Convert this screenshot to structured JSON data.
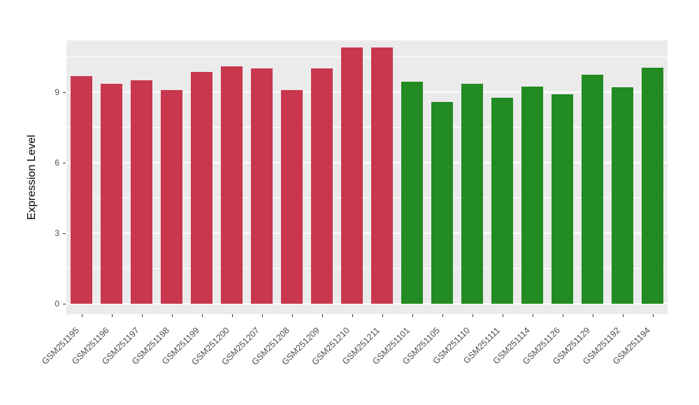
{
  "chart_data": {
    "type": "bar",
    "title": "",
    "xlabel": "",
    "ylabel": "Expression Level",
    "ylim": [
      0,
      11.2
    ],
    "yticks": [
      0,
      3,
      6,
      9
    ],
    "minor_gridlines": [
      1.5,
      4.5,
      7.5,
      10.5
    ],
    "grid": "on",
    "legend_position": "none",
    "categories": [
      "GSM251195",
      "GSM251196",
      "GSM251197",
      "GSM251198",
      "GSM251199",
      "GSM251200",
      "GSM251207",
      "GSM251208",
      "GSM251209",
      "GSM251210",
      "GSM251211",
      "GSM251101",
      "GSM251105",
      "GSM251110",
      "GSM251111",
      "GSM251114",
      "GSM251126",
      "GSM251129",
      "GSM251192",
      "GSM251194"
    ],
    "values": [
      9.7,
      9.35,
      9.5,
      9.1,
      9.85,
      10.1,
      10.0,
      9.1,
      10.0,
      10.9,
      10.9,
      9.45,
      8.6,
      9.35,
      8.75,
      9.25,
      8.9,
      9.75,
      9.2,
      10.05
    ],
    "bar_colors": [
      "#C8374D",
      "#C8374D",
      "#C8374D",
      "#C8374D",
      "#C8374D",
      "#C8374D",
      "#C8374D",
      "#C8374D",
      "#C8374D",
      "#C8374D",
      "#C8374D",
      "#228B22",
      "#228B22",
      "#228B22",
      "#228B22",
      "#228B22",
      "#228B22",
      "#228B22",
      "#228B22",
      "#228B22"
    ],
    "groups": [
      {
        "name": "group-red",
        "color": "#C8374D",
        "count": 11
      },
      {
        "name": "group-green",
        "color": "#228B22",
        "count": 9
      }
    ]
  },
  "panel": {
    "background": "#EBEBEB",
    "gridline_color": "#FFFFFF"
  }
}
